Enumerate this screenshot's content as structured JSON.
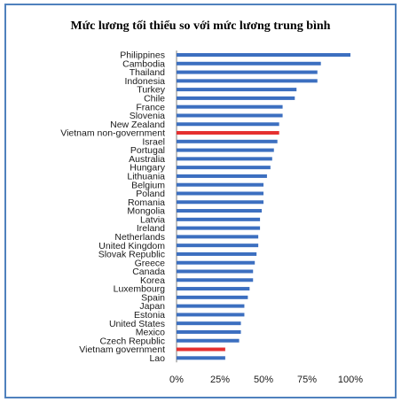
{
  "chart_data": {
    "type": "bar",
    "orientation": "horizontal",
    "title": "Mức lương tối thiểu so với mức lương trung bình",
    "xlabel": "",
    "ylabel": "",
    "xlim": [
      0,
      1
    ],
    "x_ticks": [
      "0%",
      "25%",
      "50%",
      "75%",
      "100%"
    ],
    "grid": false,
    "legend": "none",
    "colors": {
      "default": "#3c6fc0",
      "highlight": "#e53030",
      "axis": "#7f7f7f",
      "frame": "#4f81bd"
    },
    "categories": [
      "Philippines",
      "Cambodia",
      "Thailand",
      "Indonesia",
      "Turkey",
      "Chile",
      "France",
      "Slovenia",
      "New Zealand",
      "Vietnam non-government",
      "Israel",
      "Portugal",
      "Australia",
      "Hungary",
      "Lithuania",
      "Belgium",
      "Poland",
      "Romania",
      "Mongolia",
      "Latvia",
      "Ireland",
      "Netherlands",
      "United Kingdom",
      "Slovak Republic",
      "Greece",
      "Canada",
      "Korea",
      "Luxembourg",
      "Spain",
      "Japan",
      "Estonia",
      "United States",
      "Mexico",
      "Czech Republic",
      "Vietnam government",
      "Lao"
    ],
    "values": [
      1.0,
      0.83,
      0.81,
      0.81,
      0.69,
      0.68,
      0.61,
      0.61,
      0.59,
      0.59,
      0.58,
      0.56,
      0.55,
      0.54,
      0.52,
      0.5,
      0.5,
      0.5,
      0.49,
      0.48,
      0.48,
      0.47,
      0.47,
      0.46,
      0.45,
      0.44,
      0.44,
      0.42,
      0.41,
      0.39,
      0.39,
      0.37,
      0.37,
      0.36,
      0.28,
      0.28
    ],
    "highlighted": [
      "Vietnam non-government",
      "Vietnam government"
    ]
  }
}
